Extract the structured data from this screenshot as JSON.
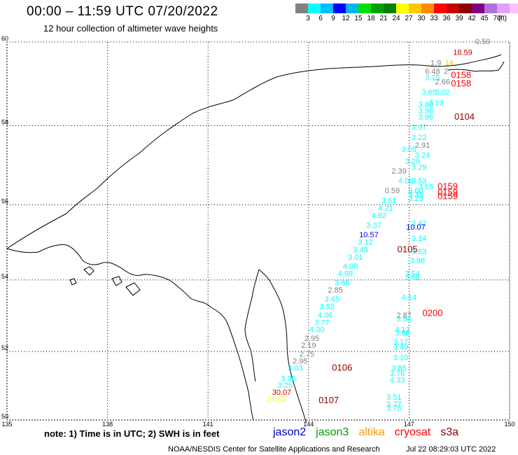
{
  "header": {
    "title": "00:00 – 11:59 UTC 07/20/2022",
    "subtitle": "12 hour collection of altimeter wave heights"
  },
  "color_scale": {
    "unit": "(ft)",
    "colors": [
      "#808080",
      "#00ffff",
      "#00bfff",
      "#0000ff",
      "#00b7eb",
      "#00e000",
      "#00a000",
      "#008000",
      "#ffff00",
      "#ffc800",
      "#ff8c00",
      "#ff0000",
      "#c80000",
      "#8b0000",
      "#800080",
      "#b070e0",
      "#e0a0ff",
      "#ffc0ff",
      "#000000"
    ],
    "ticks": [
      "3",
      "6",
      "9",
      "12",
      "15",
      "18",
      "21",
      "24",
      "27",
      "30",
      "33",
      "36",
      "39",
      "42",
      "45",
      "70"
    ]
  },
  "axes": {
    "latitudes": [
      "60",
      "58",
      "56",
      "54",
      "52",
      "50"
    ],
    "longitudes": [
      "135",
      "138",
      "141",
      "144",
      "147",
      "150"
    ]
  },
  "observations": [
    {
      "lat": 59.95,
      "lon": 149.2,
      "text": "0.59",
      "color": "#808080"
    },
    {
      "lat": 59.7,
      "lon": 148.6,
      "text": "18.59",
      "color": "#c80000"
    },
    {
      "lat": 59.45,
      "lon": 147.8,
      "text": "1.9",
      "color": "#808080"
    },
    {
      "lat": 59.45,
      "lon": 148.2,
      "text": "14",
      "color": "#ffc800"
    },
    {
      "lat": 59.25,
      "lon": 148.1,
      "text": "2",
      "color": "#808080"
    },
    {
      "lat": 59.25,
      "lon": 147.7,
      "text": "6.48",
      "color": "#808080"
    },
    {
      "lat": 59.1,
      "lon": 147.7,
      "text": "3.15",
      "color": "#00ffff"
    },
    {
      "lat": 59.0,
      "lon": 148.0,
      "text": "2.66",
      "color": "#808080"
    },
    {
      "lat": 58.75,
      "lon": 148.0,
      "text": "3.02",
      "color": "#00ffff"
    },
    {
      "lat": 58.75,
      "lon": 147.6,
      "text": "3.65",
      "color": "#00ffff"
    },
    {
      "lat": 58.5,
      "lon": 147.8,
      "text": "3.19",
      "color": "#00ffff"
    },
    {
      "lat": 58.45,
      "lon": 147.5,
      "text": "3.80",
      "color": "#00ffff"
    },
    {
      "lat": 58.3,
      "lon": 147.5,
      "text": "3.96",
      "color": "#00ffff"
    },
    {
      "lat": 58.15,
      "lon": 147.5,
      "text": "3.96",
      "color": "#00ffff"
    },
    {
      "lat": 57.9,
      "lon": 147.3,
      "text": "3.57",
      "color": "#00ffff"
    },
    {
      "lat": 57.65,
      "lon": 147.3,
      "text": "3.22",
      "color": "#00ffff"
    },
    {
      "lat": 57.45,
      "lon": 147.4,
      "text": "2.91",
      "color": "#808080"
    },
    {
      "lat": 57.35,
      "lon": 147.0,
      "text": "3.05",
      "color": "#00ffff"
    },
    {
      "lat": 57.2,
      "lon": 147.4,
      "text": "3.24",
      "color": "#00ffff"
    },
    {
      "lat": 57.05,
      "lon": 147.1,
      "text": "3.29",
      "color": "#00ffff"
    },
    {
      "lat": 56.9,
      "lon": 147.3,
      "text": "3.29",
      "color": "#00ffff"
    },
    {
      "lat": 56.8,
      "lon": 146.7,
      "text": "2.39",
      "color": "#808080"
    },
    {
      "lat": 56.55,
      "lon": 146.9,
      "text": "4.06",
      "color": "#00ffff"
    },
    {
      "lat": 56.55,
      "lon": 147.3,
      "text": "3.53",
      "color": "#00ffff"
    },
    {
      "lat": 56.4,
      "lon": 147.5,
      "text": "3.65",
      "color": "#00ffff"
    },
    {
      "lat": 56.3,
      "lon": 146.5,
      "text": "0.59",
      "color": "#808080"
    },
    {
      "lat": 56.3,
      "lon": 147.2,
      "text": "3.60",
      "color": "#00ffff"
    },
    {
      "lat": 56.2,
      "lon": 147.2,
      "text": "3.35",
      "color": "#00ffff"
    },
    {
      "lat": 56.1,
      "lon": 147.2,
      "text": "3.29",
      "color": "#00ffff"
    },
    {
      "lat": 56.05,
      "lon": 146.4,
      "text": "3.61",
      "color": "#00ffff"
    },
    {
      "lat": 55.85,
      "lon": 146.3,
      "text": "4.21",
      "color": "#00ffff"
    },
    {
      "lat": 55.65,
      "lon": 146.1,
      "text": "4.62",
      "color": "#00ffff"
    },
    {
      "lat": 55.45,
      "lon": 147.3,
      "text": "3.42",
      "color": "#00ffff"
    },
    {
      "lat": 55.4,
      "lon": 145.95,
      "text": "3.37",
      "color": "#00ffff"
    },
    {
      "lat": 55.35,
      "lon": 147.2,
      "text": "10.07",
      "color": "#0000ff"
    },
    {
      "lat": 55.15,
      "lon": 145.8,
      "text": "10.57",
      "color": "#0000ff"
    },
    {
      "lat": 55.05,
      "lon": 147.3,
      "text": "3.14",
      "color": "#00ffff"
    },
    {
      "lat": 54.95,
      "lon": 145.7,
      "text": "3.12",
      "color": "#00ffff"
    },
    {
      "lat": 54.75,
      "lon": 145.55,
      "text": "3.48",
      "color": "#00ffff"
    },
    {
      "lat": 54.7,
      "lon": 147.3,
      "text": "3.63",
      "color": "#00ffff"
    },
    {
      "lat": 54.55,
      "lon": 145.4,
      "text": "3.01",
      "color": "#00ffff"
    },
    {
      "lat": 54.45,
      "lon": 147.25,
      "text": "3.98",
      "color": "#00ffff"
    },
    {
      "lat": 54.3,
      "lon": 145.25,
      "text": "4.08",
      "color": "#00ffff"
    },
    {
      "lat": 54.1,
      "lon": 145.1,
      "text": "4.98",
      "color": "#00ffff"
    },
    {
      "lat": 54.1,
      "lon": 147.1,
      "text": "3.54",
      "color": "#00ffff"
    },
    {
      "lat": 54.0,
      "lon": 147.1,
      "text": "3.66",
      "color": "#00ffff"
    },
    {
      "lat": 53.85,
      "lon": 145.0,
      "text": "3.86",
      "color": "#00ffff"
    },
    {
      "lat": 53.65,
      "lon": 144.8,
      "text": "2.85",
      "color": "#808080"
    },
    {
      "lat": 53.4,
      "lon": 144.7,
      "text": "3.45",
      "color": "#00ffff"
    },
    {
      "lat": 53.45,
      "lon": 147.0,
      "text": "4.14",
      "color": "#00ffff"
    },
    {
      "lat": 53.2,
      "lon": 144.55,
      "text": "3.92",
      "color": "#00ffff"
    },
    {
      "lat": 52.95,
      "lon": 144.5,
      "text": "4.06",
      "color": "#00ffff"
    },
    {
      "lat": 52.95,
      "lon": 146.85,
      "text": "2.87",
      "color": "#808080"
    },
    {
      "lat": 52.85,
      "lon": 146.85,
      "text": "3.50",
      "color": "#00ffff"
    },
    {
      "lat": 52.75,
      "lon": 144.4,
      "text": "3.77",
      "color": "#00ffff"
    },
    {
      "lat": 52.55,
      "lon": 144.25,
      "text": "4.30",
      "color": "#00ffff"
    },
    {
      "lat": 52.55,
      "lon": 146.8,
      "text": "4.12",
      "color": "#00ffff"
    },
    {
      "lat": 52.45,
      "lon": 146.8,
      "text": "3.86",
      "color": "#00ffff"
    },
    {
      "lat": 52.3,
      "lon": 144.1,
      "text": "2.95",
      "color": "#808080"
    },
    {
      "lat": 52.2,
      "lon": 146.75,
      "text": "3.17",
      "color": "#00ffff"
    },
    {
      "lat": 52.1,
      "lon": 144.0,
      "text": "2.19",
      "color": "#808080"
    },
    {
      "lat": 52.05,
      "lon": 146.75,
      "text": "3.49",
      "color": "#00ffff"
    },
    {
      "lat": 51.85,
      "lon": 143.95,
      "text": "2.75",
      "color": "#808080"
    },
    {
      "lat": 51.75,
      "lon": 146.75,
      "text": "3.10",
      "color": "#00ffff"
    },
    {
      "lat": 51.65,
      "lon": 143.75,
      "text": "2.95",
      "color": "#808080"
    },
    {
      "lat": 51.45,
      "lon": 143.6,
      "text": "3.03",
      "color": "#00ffff"
    },
    {
      "lat": 51.45,
      "lon": 146.7,
      "text": "3.85",
      "color": "#00ffff"
    },
    {
      "lat": 51.3,
      "lon": 146.65,
      "text": "3.76",
      "color": "#00ffff"
    },
    {
      "lat": 51.15,
      "lon": 143.4,
      "text": "3.36",
      "color": "#00ffff"
    },
    {
      "lat": 51.1,
      "lon": 146.65,
      "text": "4.33",
      "color": "#00ffff"
    },
    {
      "lat": 50.95,
      "lon": 143.3,
      "text": "3.25",
      "color": "#00ffff"
    },
    {
      "lat": 50.75,
      "lon": 143.2,
      "text": "30.07",
      "color": "#c80000"
    },
    {
      "lat": 50.55,
      "lon": 143.05,
      "text": "21.02",
      "color": "#ffff00"
    },
    {
      "lat": 50.6,
      "lon": 146.55,
      "text": "3.51",
      "color": "#00ffff"
    },
    {
      "lat": 50.4,
      "lon": 146.55,
      "text": "3.77",
      "color": "#00ffff"
    },
    {
      "lat": 50.28,
      "lon": 146.55,
      "text": "3.78",
      "color": "#00ffff"
    }
  ],
  "pass_times": [
    {
      "lat": 59.15,
      "lon": 148.25,
      "text": "0158",
      "color": "#ff0000"
    },
    {
      "lat": 58.95,
      "lon": 148.25,
      "text": "0158",
      "color": "#ff0000"
    },
    {
      "lat": 58.15,
      "lon": 148.35,
      "text": "0104",
      "color": "#8b0000"
    },
    {
      "lat": 56.4,
      "lon": 147.85,
      "text": "0159",
      "color": "#ff0000"
    },
    {
      "lat": 56.25,
      "lon": 147.85,
      "text": "0159",
      "color": "#ff0000"
    },
    {
      "lat": 56.15,
      "lon": 147.85,
      "text": "0159",
      "color": "#ff0000"
    },
    {
      "lat": 54.75,
      "lon": 146.65,
      "text": "0105",
      "color": "#8b0000"
    },
    {
      "lat": 53.0,
      "lon": 147.4,
      "text": "0200",
      "color": "#ff0000"
    },
    {
      "lat": 51.45,
      "lon": 144.7,
      "text": "0106",
      "color": "#8b0000"
    },
    {
      "lat": 50.5,
      "lon": 144.3,
      "text": "0107",
      "color": "#8b0000"
    }
  ],
  "footer": {
    "note": "note:  1) Time is in UTC;  2) SWH is in feet",
    "legend": [
      {
        "label": "jason2",
        "color": "#0000cc"
      },
      {
        "label": "jason3",
        "color": "#00a000"
      },
      {
        "label": "altika",
        "color": "#ff9900"
      },
      {
        "label": "cryosat",
        "color": "#ff0000"
      },
      {
        "label": "s3a",
        "color": "#8b0000"
      }
    ],
    "credit": "NOAA/NESDIS Center for Satellite Applications and Research",
    "timestamp": "Jul 22 08:29:03 UTC 2022"
  }
}
